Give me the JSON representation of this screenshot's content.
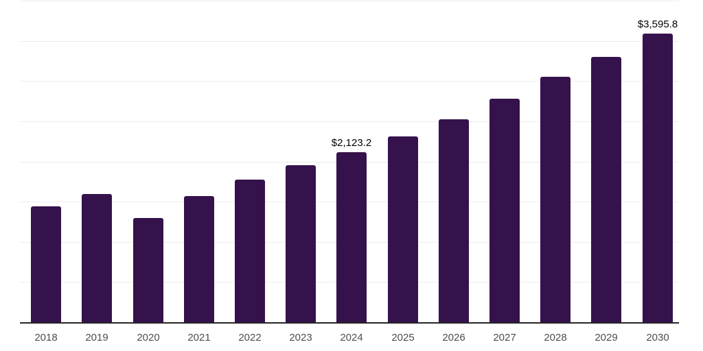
{
  "chart_data": {
    "type": "bar",
    "title": "",
    "xlabel": "",
    "ylabel": "",
    "categories": [
      "2018",
      "2019",
      "2020",
      "2021",
      "2022",
      "2023",
      "2024",
      "2025",
      "2026",
      "2027",
      "2028",
      "2029",
      "2030"
    ],
    "values": [
      1448,
      1601,
      1303,
      1576,
      1780,
      1959,
      2123.2,
      2317,
      2535,
      2785,
      3066,
      3313,
      3595.8
    ],
    "data_labels": [
      "",
      "",
      "",
      "",
      "",
      "",
      "$2,123.2",
      "",
      "",
      "",
      "",
      "",
      "$3,595.8"
    ],
    "ylim": [
      0,
      4000
    ],
    "gridline_step": 500,
    "grid": true,
    "legend": false,
    "colors": {
      "bar": "#35124B",
      "axis_line": "#262626",
      "tick_label": "#4D4D4D",
      "data_label": "#000000",
      "gridline": "#ECECEC",
      "background": "#FFFFFF"
    }
  }
}
